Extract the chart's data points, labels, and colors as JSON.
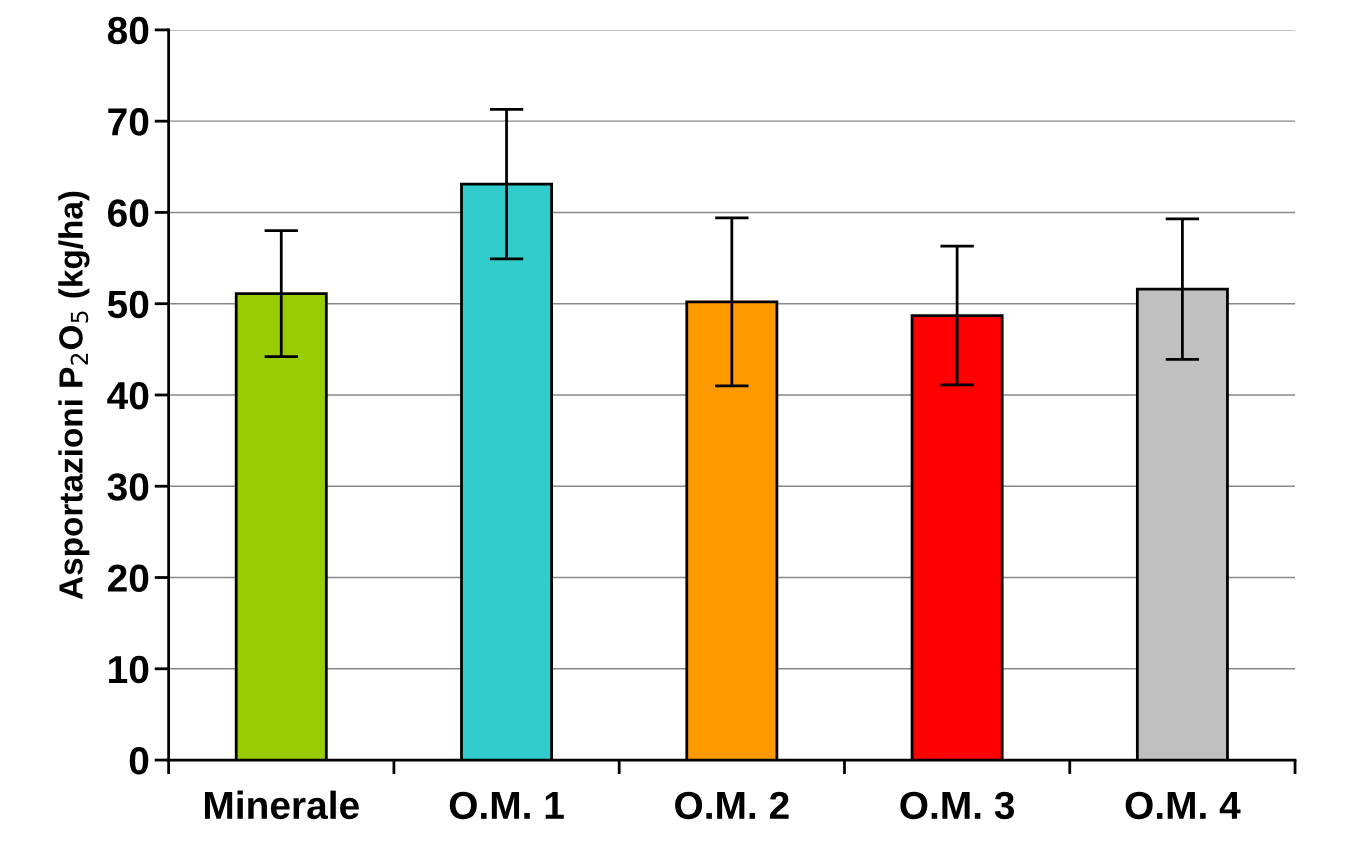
{
  "chart_data": {
    "type": "bar",
    "ylabel": "Asportazioni P$_{2}$O$_{5}$ (kg/ha)",
    "categories": [
      "Minerale",
      "O.M. 1",
      "O.M. 2",
      "O.M. 3",
      "O.M. 4"
    ],
    "values": [
      51.1,
      63.1,
      50.2,
      48.7,
      51.6
    ],
    "errors": [
      6.9,
      8.2,
      9.2,
      7.6,
      7.7
    ],
    "colors": [
      "#99cc00",
      "#33cccc",
      "#ff9900",
      "#ff0000",
      "#c0c0c0"
    ],
    "ylim": [
      0,
      80
    ],
    "yticks": [
      0,
      10,
      20,
      30,
      40,
      50,
      60,
      70,
      80
    ],
    "grid": "y"
  }
}
